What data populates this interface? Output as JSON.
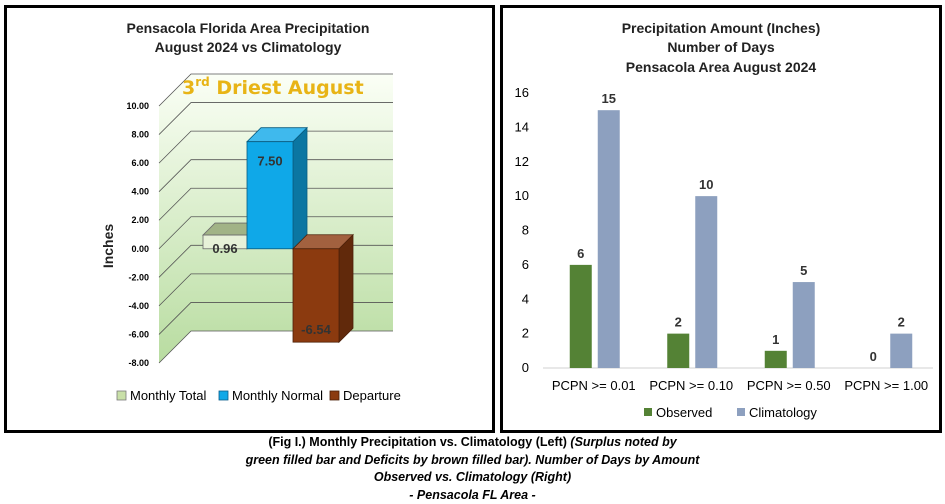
{
  "left_chart": {
    "title_lines": [
      "Pensacola Florida Area Precipitation",
      "August 2024 vs Climatology"
    ],
    "annotation": {
      "sup_prefix": "3",
      "sup": "rd",
      "rest": " Driest August"
    },
    "colors": {
      "monthly_total": "#c9e0a8",
      "monthly_normal": "#0fa8e8",
      "departure": "#8b3a0f",
      "wall_top": "#fbfff6",
      "wall_bottom": "#b8dca0",
      "annotation": "#e8b416"
    },
    "chart_data": {
      "type": "bar",
      "title": "Pensacola Florida Area Precipitation August 2024 vs Climatology",
      "ylabel": "Inches",
      "ylim": [
        -8,
        10
      ],
      "yticks": [
        "10.00",
        "8.00",
        "6.00",
        "4.00",
        "2.00",
        "0.00",
        "-2.00",
        "-4.00",
        "-6.00",
        "-8.00"
      ],
      "series": [
        {
          "name": "Monthly Total",
          "values": [
            0.96
          ],
          "label": "0.96"
        },
        {
          "name": "Monthly Normal",
          "values": [
            7.5
          ],
          "label": "7.50"
        },
        {
          "name": "Departure",
          "values": [
            -6.54
          ],
          "label": "-6.54"
        }
      ],
      "legend": [
        "Monthly Total",
        "Monthly Normal",
        "Departure"
      ],
      "grid": true,
      "legend_position": "bottom"
    }
  },
  "right_chart": {
    "title_lines": [
      "Precipitation Amount (Inches)",
      "Number of Days",
      "Pensacola Area August 2024"
    ],
    "colors": {
      "observed": "#548235",
      "climatology": "#8da0bf"
    },
    "chart_data": {
      "type": "bar",
      "title": "Precipitation Amount (Inches) Number of Days Pensacola Area August 2024",
      "categories": [
        "PCPN >= 0.01",
        "PCPN >= 0.10",
        "PCPN >= 0.50",
        "PCPN >= 1.00"
      ],
      "series": [
        {
          "name": "Observed",
          "values": [
            6,
            2,
            1,
            0
          ]
        },
        {
          "name": "Climatology",
          "values": [
            15,
            10,
            5,
            2
          ]
        }
      ],
      "ylim": [
        0,
        16
      ],
      "yticks": [
        "0",
        "2",
        "4",
        "6",
        "8",
        "10",
        "12",
        "14",
        "16"
      ],
      "grid": false,
      "legend_position": "bottom"
    }
  },
  "caption": {
    "line1_normal": "(Fig I.) Monthly Precipitation vs. Climatology (Left) ",
    "line1_italic": "(Surplus noted by",
    "line2": "green filled bar and Deficits by brown filled bar). Number of Days by Amount",
    "line3": "Observed vs. Climatology (Right)",
    "line4": "- Pensacola FL Area -"
  }
}
